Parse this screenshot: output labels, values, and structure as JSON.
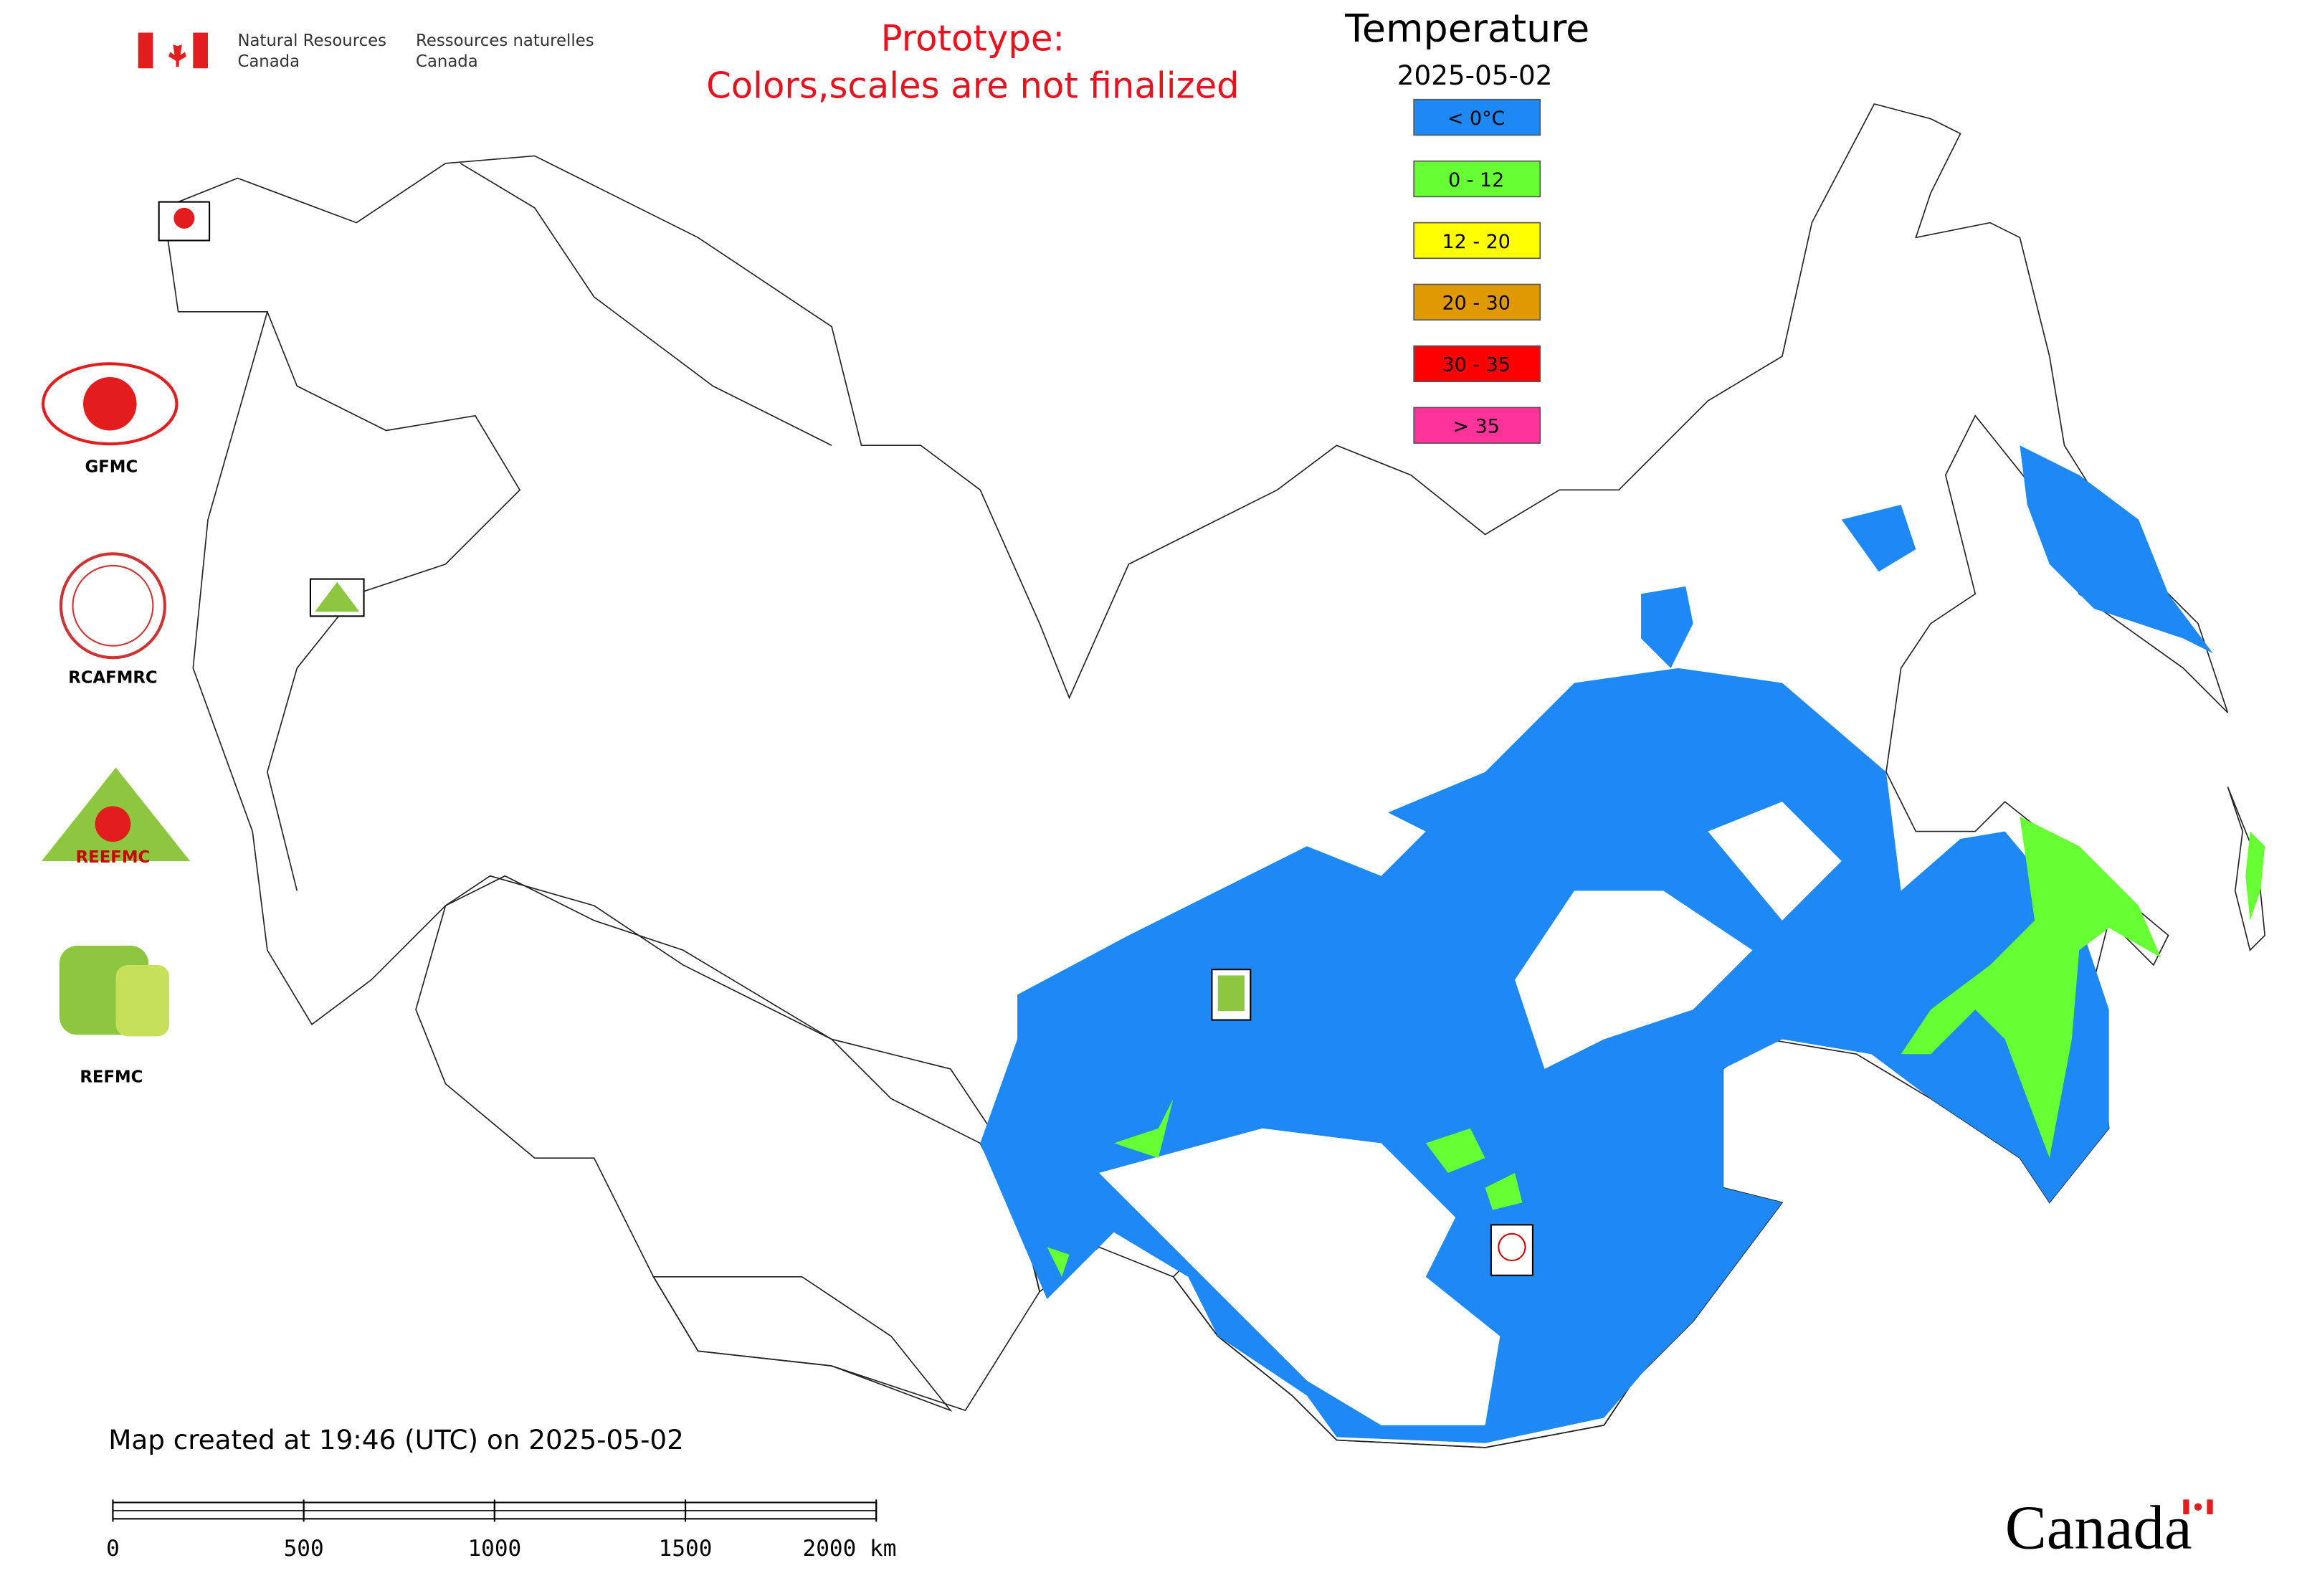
{
  "header": {
    "dept_en": [
      "Natural Resources",
      "Canada"
    ],
    "dept_fr": [
      "Ressources naturelles",
      "Canada"
    ],
    "notice": [
      "Prototype:",
      "Colors,scales are not finalized"
    ]
  },
  "legend": {
    "title": "Temperature",
    "date": "2025-05-02",
    "items": [
      {
        "label": "< 0°C",
        "color": "#1e88f5"
      },
      {
        "label": "0 - 12",
        "color": "#66ff33"
      },
      {
        "label": "12 - 20",
        "color": "#ffff00"
      },
      {
        "label": "20 - 30",
        "color": "#e09a00"
      },
      {
        "label": "30 - 35",
        "color": "#ff0000"
      },
      {
        "label": "> 35",
        "color": "#ff3399"
      }
    ]
  },
  "organizations": [
    "GFMC",
    "RCAFMRC",
    "REEFMC",
    "REFMC"
  ],
  "footer": {
    "created": "Map created at 19:46 (UTC) on 2025-05-02",
    "wordmark": "Canada"
  },
  "scale_bar": {
    "xlim": [
      0,
      2000
    ],
    "ticks": [
      0,
      500,
      1000,
      1500,
      {
        "value": 2000,
        "label": "2000 km"
      }
    ]
  }
}
